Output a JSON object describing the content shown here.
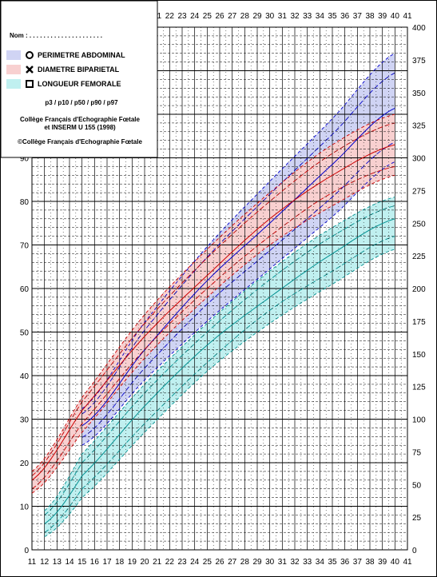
{
  "chart_data": {
    "type": "line",
    "x_axis": {
      "min": 11,
      "max": 41,
      "ticks": [
        11,
        12,
        13,
        14,
        15,
        16,
        17,
        18,
        19,
        20,
        21,
        22,
        23,
        24,
        25,
        26,
        27,
        28,
        29,
        30,
        31,
        32,
        33,
        34,
        35,
        36,
        37,
        38,
        39,
        40,
        41
      ]
    },
    "x_axis_top": {
      "min": 21,
      "max": 41
    },
    "y_axis_left": {
      "min": 0,
      "max": 120,
      "step": 10
    },
    "y_axis_right": {
      "min": 0,
      "max": 400,
      "step": 25
    },
    "grid": true,
    "legend": {
      "placement": "top-left",
      "name_label": "Nom : . . . . . . . . . . . . . . . . . . . . .",
      "entries": [
        {
          "name": "PERIMETRE ABDOMINAL",
          "color": "#d0d4f4",
          "marker": "circle"
        },
        {
          "name": "DIAMETRE BIPARIETAL",
          "color": "#f8d0d0",
          "marker": "cross"
        },
        {
          "name": "LONGUEUR FEMORALE",
          "color": "#c0f0f0",
          "marker": "square"
        }
      ],
      "percentiles_label": "p3 / p10 / p50 / p90 / p97",
      "source_line1": "Collège Français d'Echographie Fœtale",
      "source_line2": "et INSERM U 155 (1998)",
      "copyright": "©Collège Français d'Echographie Fœtale"
    },
    "series": [
      {
        "name": "PERIMETRE ABDOMINAL",
        "axis": "right",
        "color": "#0000cc",
        "fill": "#d0d4f4",
        "x": [
          15,
          20,
          25,
          30,
          35,
          40
        ],
        "p3": [
          80,
          130,
          175,
          215,
          255,
          297
        ],
        "p10": [
          86,
          139,
          188,
          229,
          270,
          312
        ],
        "p50": [
          95,
          153,
          206,
          250,
          295,
          338
        ],
        "p90": [
          104,
          168,
          224,
          272,
          318,
          365
        ],
        "p97": [
          108,
          174,
          232,
          282,
          330,
          380
        ]
      },
      {
        "name": "DIAMETRE BIPARIETAL",
        "axis": "left",
        "color": "#cc0000",
        "fill": "#f8d0d0",
        "x": [
          11,
          15,
          20,
          25,
          30,
          35,
          40
        ],
        "p3": [
          13,
          27,
          44,
          58,
          70,
          79,
          86
        ],
        "p10": [
          14,
          29,
          46,
          60,
          72,
          82,
          88
        ],
        "p50": [
          16,
          32,
          49,
          63,
          76,
          86,
          93
        ],
        "p90": [
          17,
          34,
          52,
          67,
          80,
          91,
          98
        ],
        "p97": [
          18,
          35,
          54,
          69,
          82,
          93,
          100
        ]
      },
      {
        "name": "LONGUEUR FEMORALE",
        "axis": "left",
        "color": "#009090",
        "fill": "#c0f0f0",
        "x": [
          12,
          15,
          20,
          25,
          30,
          35,
          40
        ],
        "p3": [
          3,
          12,
          27,
          41,
          52,
          61,
          69
        ],
        "p10": [
          4,
          14,
          29,
          43,
          55,
          64,
          72
        ],
        "p50": [
          6,
          17,
          33,
          47,
          58,
          68,
          76
        ],
        "p90": [
          8,
          20,
          36,
          50,
          62,
          72,
          79
        ],
        "p97": [
          9,
          22,
          38,
          52,
          64,
          74,
          81
        ]
      }
    ]
  }
}
